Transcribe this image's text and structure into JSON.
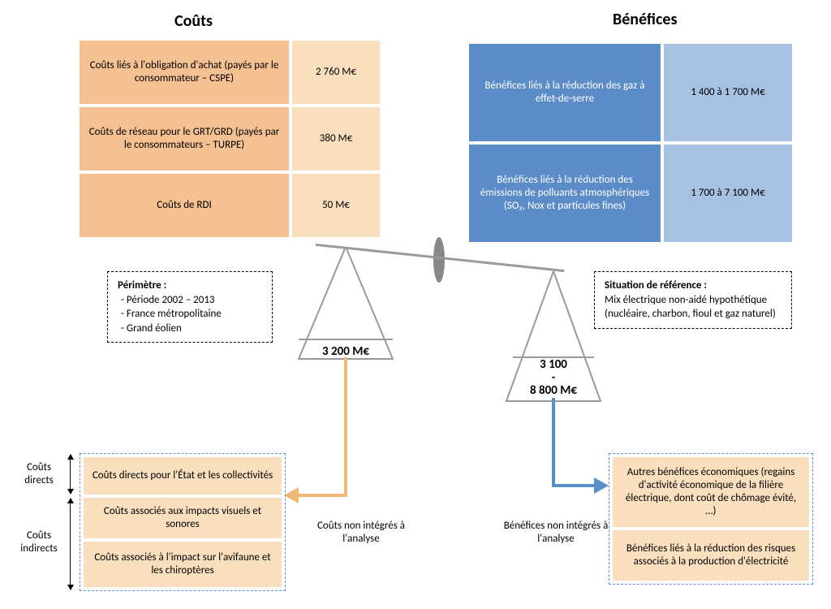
{
  "titles": {
    "left": "Coûts",
    "right": "Bénéfices"
  },
  "costs_table": {
    "rows": [
      {
        "label": "Coûts liés à l'obligation d'achat (payés par le consommateur – CSPE)",
        "value": "2 760 M€"
      },
      {
        "label": "Coûts de réseau pour le GRT/GRD (payés par le consommateurs – TURPE)",
        "value": "380 M€"
      },
      {
        "label": "Coûts de RDI",
        "value": "50 M€"
      }
    ],
    "col_labels_bg": "#f6c192",
    "col_values_bg": "#fadfbe"
  },
  "benefits_table": {
    "rows": [
      {
        "label": "Bénéfices liés à la réduction des gaz à effet-de-serre",
        "value": "1 400 à 1 700 M€"
      },
      {
        "label": "Bénéfices liés à la réduction des émissions de polluants atmosphériques (SO₂, Nox et particules fines)",
        "value": "1 700 à 7 100 M€"
      }
    ],
    "col_labels_bg": "#5b8cc7",
    "col_values_bg": "#a6c1e1"
  },
  "perimeter": {
    "title": "Périmètre :",
    "items": [
      "Période 2002 – 2013",
      "France métropolitaine",
      "Grand éolien"
    ]
  },
  "reference": {
    "title": "Situation de référence :",
    "body": "Mix électrique non-aidé hypothétique (nucléaire, charbon, fioul et gaz naturel)"
  },
  "scale": {
    "left_total": "3 200 M€",
    "right_total_line1": "3 100",
    "right_total_line2": "-",
    "right_total_line3": "8 800 M€",
    "beam_color": "#9a9a9a",
    "pan_stroke": "#9a9a9a"
  },
  "captions": {
    "left": "Coûts non intégrés à l'analyse",
    "right": "Bénéfices non intégrés à l'analyse"
  },
  "excluded_costs": {
    "items": [
      "Coûts directs pour l'État et les collectivités",
      "Coûts associés aux impacts visuels et sonores",
      "Coûts associés à l'impact sur l'avifaune et les chiroptères"
    ]
  },
  "excluded_benefits": {
    "items": [
      "Autres bénéfices économiques (regains d'activité économique de la filière électrique, dont coût de chômage évité, …)",
      "Bénéfices liés à la réduction des risques associés à la production d'électricité"
    ]
  },
  "side_labels": {
    "direct": "Coûts directs",
    "indirect": "Coûts indirects"
  },
  "arrow_colors": {
    "left": "#f3b775",
    "right": "#5a8ecb"
  }
}
